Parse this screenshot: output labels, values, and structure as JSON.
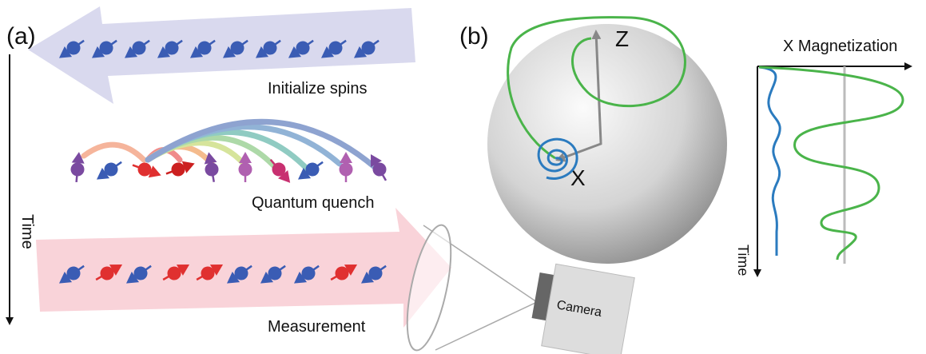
{
  "panel_a": {
    "label": "(a)",
    "time_label": "Time",
    "steps": [
      "Initialize spins",
      "Quantum quench",
      "Measurement"
    ],
    "camera": "Camera"
  },
  "panel_b": {
    "label": "(b)",
    "z_axis": "Z",
    "x_axis": "X",
    "plot_title": "X Magnetization",
    "time_label": "Time"
  }
}
